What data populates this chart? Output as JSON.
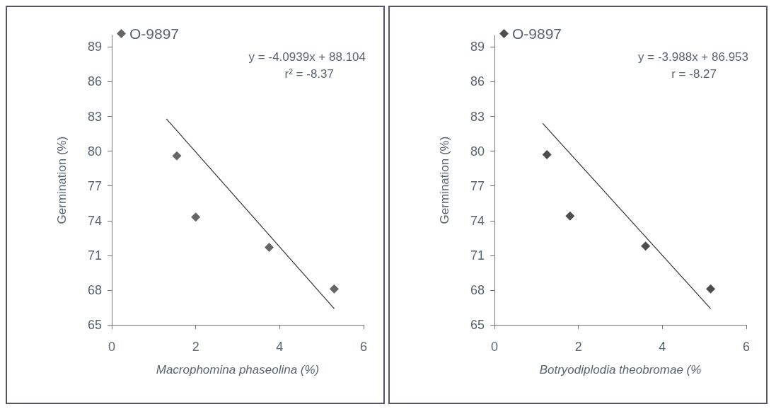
{
  "chart_data": [
    {
      "type": "scatter",
      "xlabel": "Macrophomina phaseolina (%)",
      "ylabel": "Germination (%)",
      "xlim": [
        0,
        6
      ],
      "xticks": [
        0,
        2,
        4,
        6
      ],
      "ylim": [
        65,
        90
      ],
      "yticks": [
        65,
        68,
        71,
        74,
        77,
        80,
        83,
        86,
        89
      ],
      "grid": false,
      "legend": "top left",
      "marker": "diamond",
      "annotations": [
        "y = -4.0939x + 88.104",
        "r² = -8.37"
      ],
      "series": [
        {
          "name": "O-9897",
          "color": "#404040",
          "x": [
            1.55,
            2.0,
            3.75,
            5.3
          ],
          "values": [
            79.6,
            74.3,
            71.7,
            68.1
          ]
        },
        {
          "type": "line",
          "marker": "none",
          "color": "#333333",
          "x": [
            1.3,
            5.3
          ],
          "values": [
            82.8,
            66.4
          ]
        }
      ]
    },
    {
      "type": "scatter",
      "xlabel": "Botryodiplodia theobromae (%",
      "ylabel": "Germination (%)",
      "xlim": [
        0,
        6
      ],
      "xticks": [
        0,
        2,
        4,
        6
      ],
      "ylim": [
        65,
        90
      ],
      "yticks": [
        65,
        68,
        71,
        74,
        77,
        80,
        83,
        86,
        89
      ],
      "grid": false,
      "legend": "top left",
      "marker": "diamond",
      "annotations": [
        "y = -3.988x + 86.953",
        "r = -8.27"
      ],
      "series": [
        {
          "name": "O-9897",
          "color": "#202020",
          "x": [
            1.25,
            1.8,
            3.6,
            5.15
          ],
          "values": [
            79.7,
            74.4,
            71.8,
            68.1
          ]
        },
        {
          "type": "line",
          "marker": "none",
          "color": "#333333",
          "x": [
            1.15,
            5.15
          ],
          "values": [
            82.4,
            66.4
          ]
        }
      ]
    }
  ]
}
